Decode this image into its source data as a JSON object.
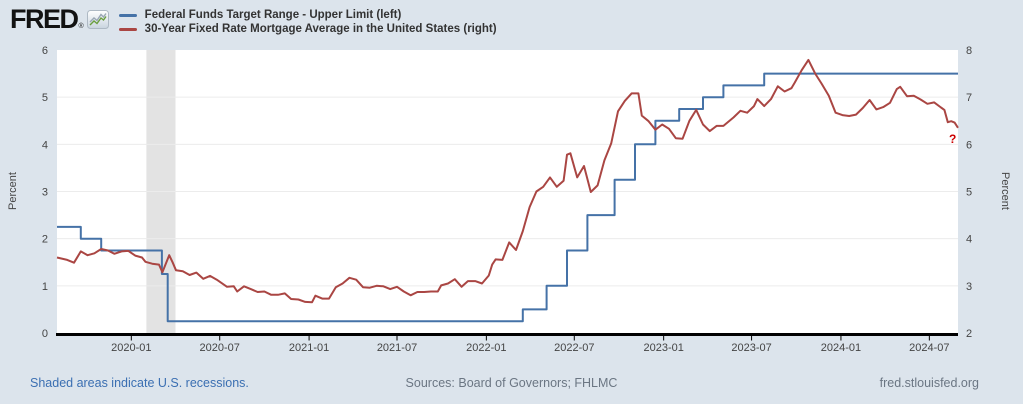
{
  "header": {
    "logo_text": "FRED",
    "logo_registered": "®",
    "legend": [
      {
        "label": "Federal Funds Target Range - Upper Limit (left)",
        "color": "#4572a7"
      },
      {
        "label": "30-Year Fixed Rate Mortgage Average in the United States (right)",
        "color": "#aa4643"
      }
    ]
  },
  "footer": {
    "recession_note": "Shaded areas indicate U.S. recessions.",
    "sources": "Sources: Board of Governors; FHLMC",
    "site": "fred.stlouisfed.org"
  },
  "colors": {
    "background": "#dce4ec",
    "plot_background": "#ffffff",
    "gridline": "#ececec",
    "recession_band": "#e3e3e3",
    "axis_line": "#000000",
    "tick_label": "#444444",
    "link_blue": "#3b6fb2",
    "footer_gray": "#6b7683",
    "series_blue": "#4572a7",
    "series_red": "#aa4643",
    "end_marker_red": "#cc0000"
  },
  "chart_data": {
    "type": "line",
    "grid": "horizontal",
    "legend_position": "top",
    "left_axis": {
      "label": "Percent",
      "min": 0,
      "max": 6,
      "ticks": [
        0,
        1,
        2,
        3,
        4,
        5,
        6
      ]
    },
    "right_axis": {
      "label": "Percent",
      "min": 2,
      "max": 8,
      "ticks": [
        2,
        3,
        4,
        5,
        6,
        7,
        8
      ]
    },
    "x_axis": {
      "start": "2019-08-01",
      "end": "2024-08-29",
      "tick_labels": [
        "2020-01",
        "2020-07",
        "2021-01",
        "2021-07",
        "2022-01",
        "2022-07",
        "2023-01",
        "2023-07",
        "2024-01",
        "2024-07"
      ]
    },
    "recessions": [
      {
        "start": "2020-02-01",
        "end": "2020-04-01"
      }
    ],
    "recession_color": "#e3e3e3",
    "series": [
      {
        "name": "Federal Funds Target Range - Upper Limit",
        "axis": "left",
        "units": "Percent",
        "color": "#4572a7",
        "step": true,
        "points": [
          [
            "2019-08-01",
            2.25
          ],
          [
            "2019-09-19",
            2.0
          ],
          [
            "2019-10-31",
            1.75
          ],
          [
            "2020-03-04",
            1.25
          ],
          [
            "2020-03-16",
            0.25
          ],
          [
            "2022-03-17",
            0.5
          ],
          [
            "2022-05-05",
            1.0
          ],
          [
            "2022-06-16",
            1.75
          ],
          [
            "2022-07-28",
            2.5
          ],
          [
            "2022-09-22",
            3.25
          ],
          [
            "2022-11-03",
            4.0
          ],
          [
            "2022-12-15",
            4.5
          ],
          [
            "2023-02-02",
            4.75
          ],
          [
            "2023-03-23",
            5.0
          ],
          [
            "2023-05-04",
            5.25
          ],
          [
            "2023-07-27",
            5.5
          ]
        ]
      },
      {
        "name": "30-Year Fixed Rate Mortgage Average in the United States",
        "axis": "right",
        "units": "Percent",
        "color": "#aa4643",
        "step": false,
        "end_marker": "?",
        "end_marker_color": "#cc0000",
        "points": [
          [
            "2019-08-01",
            3.6
          ],
          [
            "2019-08-22",
            3.55
          ],
          [
            "2019-09-05",
            3.49
          ],
          [
            "2019-09-19",
            3.73
          ],
          [
            "2019-10-03",
            3.65
          ],
          [
            "2019-10-17",
            3.69
          ],
          [
            "2019-10-31",
            3.78
          ],
          [
            "2019-11-14",
            3.75
          ],
          [
            "2019-11-27",
            3.68
          ],
          [
            "2019-12-12",
            3.73
          ],
          [
            "2019-12-26",
            3.74
          ],
          [
            "2020-01-09",
            3.64
          ],
          [
            "2020-01-23",
            3.6
          ],
          [
            "2020-01-30",
            3.51
          ],
          [
            "2020-02-13",
            3.47
          ],
          [
            "2020-02-27",
            3.45
          ],
          [
            "2020-03-05",
            3.29
          ],
          [
            "2020-03-19",
            3.65
          ],
          [
            "2020-03-26",
            3.5
          ],
          [
            "2020-04-02",
            3.33
          ],
          [
            "2020-04-16",
            3.31
          ],
          [
            "2020-04-30",
            3.23
          ],
          [
            "2020-05-14",
            3.28
          ],
          [
            "2020-05-28",
            3.15
          ],
          [
            "2020-06-11",
            3.21
          ],
          [
            "2020-06-25",
            3.13
          ],
          [
            "2020-07-09",
            3.03
          ],
          [
            "2020-07-16",
            2.98
          ],
          [
            "2020-07-30",
            2.99
          ],
          [
            "2020-08-06",
            2.88
          ],
          [
            "2020-08-20",
            2.99
          ],
          [
            "2020-09-03",
            2.93
          ],
          [
            "2020-09-17",
            2.87
          ],
          [
            "2020-10-01",
            2.88
          ],
          [
            "2020-10-15",
            2.81
          ],
          [
            "2020-10-29",
            2.81
          ],
          [
            "2020-11-12",
            2.84
          ],
          [
            "2020-11-25",
            2.72
          ],
          [
            "2020-12-10",
            2.71
          ],
          [
            "2020-12-24",
            2.66
          ],
          [
            "2021-01-07",
            2.65
          ],
          [
            "2021-01-14",
            2.79
          ],
          [
            "2021-01-28",
            2.73
          ],
          [
            "2021-02-11",
            2.73
          ],
          [
            "2021-02-25",
            2.97
          ],
          [
            "2021-03-11",
            3.05
          ],
          [
            "2021-03-25",
            3.17
          ],
          [
            "2021-04-08",
            3.13
          ],
          [
            "2021-04-22",
            2.97
          ],
          [
            "2021-05-06",
            2.96
          ],
          [
            "2021-05-20",
            3.0
          ],
          [
            "2021-06-03",
            2.99
          ],
          [
            "2021-06-17",
            2.93
          ],
          [
            "2021-07-01",
            2.98
          ],
          [
            "2021-07-15",
            2.88
          ],
          [
            "2021-07-29",
            2.8
          ],
          [
            "2021-08-12",
            2.87
          ],
          [
            "2021-08-26",
            2.87
          ],
          [
            "2021-09-09",
            2.88
          ],
          [
            "2021-09-23",
            2.88
          ],
          [
            "2021-09-30",
            3.01
          ],
          [
            "2021-10-14",
            3.05
          ],
          [
            "2021-10-28",
            3.14
          ],
          [
            "2021-11-11",
            2.98
          ],
          [
            "2021-11-24",
            3.1
          ],
          [
            "2021-12-09",
            3.1
          ],
          [
            "2021-12-23",
            3.05
          ],
          [
            "2022-01-06",
            3.22
          ],
          [
            "2022-01-13",
            3.45
          ],
          [
            "2022-01-20",
            3.56
          ],
          [
            "2022-02-03",
            3.55
          ],
          [
            "2022-02-17",
            3.92
          ],
          [
            "2022-03-03",
            3.76
          ],
          [
            "2022-03-17",
            4.16
          ],
          [
            "2022-03-31",
            4.67
          ],
          [
            "2022-04-14",
            5.0
          ],
          [
            "2022-04-28",
            5.1
          ],
          [
            "2022-05-12",
            5.3
          ],
          [
            "2022-05-26",
            5.1
          ],
          [
            "2022-06-09",
            5.23
          ],
          [
            "2022-06-16",
            5.78
          ],
          [
            "2022-06-23",
            5.81
          ],
          [
            "2022-07-07",
            5.3
          ],
          [
            "2022-07-21",
            5.54
          ],
          [
            "2022-08-04",
            4.99
          ],
          [
            "2022-08-18",
            5.13
          ],
          [
            "2022-09-01",
            5.66
          ],
          [
            "2022-09-15",
            6.02
          ],
          [
            "2022-09-29",
            6.7
          ],
          [
            "2022-10-13",
            6.92
          ],
          [
            "2022-10-27",
            7.08
          ],
          [
            "2022-11-10",
            7.08
          ],
          [
            "2022-11-17",
            6.61
          ],
          [
            "2022-12-01",
            6.49
          ],
          [
            "2022-12-15",
            6.31
          ],
          [
            "2022-12-29",
            6.42
          ],
          [
            "2023-01-12",
            6.33
          ],
          [
            "2023-01-26",
            6.13
          ],
          [
            "2023-02-09",
            6.12
          ],
          [
            "2023-02-23",
            6.5
          ],
          [
            "2023-03-09",
            6.73
          ],
          [
            "2023-03-23",
            6.42
          ],
          [
            "2023-04-06",
            6.28
          ],
          [
            "2023-04-20",
            6.39
          ],
          [
            "2023-05-04",
            6.39
          ],
          [
            "2023-05-25",
            6.57
          ],
          [
            "2023-06-08",
            6.71
          ],
          [
            "2023-06-22",
            6.67
          ],
          [
            "2023-07-06",
            6.81
          ],
          [
            "2023-07-13",
            6.96
          ],
          [
            "2023-07-27",
            6.81
          ],
          [
            "2023-08-10",
            6.96
          ],
          [
            "2023-08-24",
            7.23
          ],
          [
            "2023-09-07",
            7.12
          ],
          [
            "2023-09-21",
            7.19
          ],
          [
            "2023-09-28",
            7.31
          ],
          [
            "2023-10-12",
            7.57
          ],
          [
            "2023-10-26",
            7.79
          ],
          [
            "2023-11-09",
            7.5
          ],
          [
            "2023-11-22",
            7.29
          ],
          [
            "2023-12-07",
            7.03
          ],
          [
            "2023-12-21",
            6.67
          ],
          [
            "2024-01-04",
            6.62
          ],
          [
            "2024-01-18",
            6.6
          ],
          [
            "2024-02-01",
            6.63
          ],
          [
            "2024-02-15",
            6.77
          ],
          [
            "2024-02-29",
            6.94
          ],
          [
            "2024-03-14",
            6.74
          ],
          [
            "2024-03-28",
            6.79
          ],
          [
            "2024-04-11",
            6.88
          ],
          [
            "2024-04-25",
            7.17
          ],
          [
            "2024-05-02",
            7.22
          ],
          [
            "2024-05-16",
            7.02
          ],
          [
            "2024-05-30",
            7.03
          ],
          [
            "2024-06-13",
            6.95
          ],
          [
            "2024-06-27",
            6.86
          ],
          [
            "2024-07-11",
            6.89
          ],
          [
            "2024-07-25",
            6.78
          ],
          [
            "2024-08-01",
            6.73
          ],
          [
            "2024-08-08",
            6.47
          ],
          [
            "2024-08-15",
            6.49
          ],
          [
            "2024-08-22",
            6.46
          ],
          [
            "2024-08-29",
            6.35
          ]
        ]
      }
    ]
  }
}
